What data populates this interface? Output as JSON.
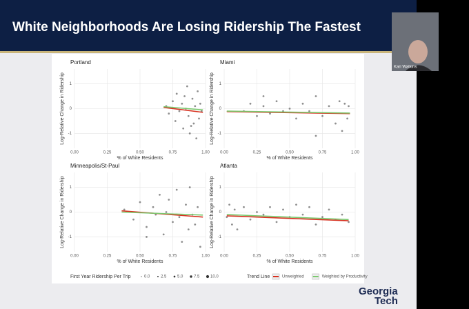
{
  "slide": {
    "title": "White Neighborhoods Are Losing Ridership The Fastest",
    "logo": [
      "Georgia",
      "Tech"
    ]
  },
  "video": {
    "name": "Kari Watkins"
  },
  "legend": {
    "size_title": "First Year Ridership Per Trip",
    "sizes": [
      {
        "value": 0,
        "label": "0.0"
      },
      {
        "value": 2.5,
        "label": "2.5"
      },
      {
        "value": 5,
        "label": "5.0"
      },
      {
        "value": 7.5,
        "label": "7.5"
      },
      {
        "value": 10,
        "label": "10.0"
      }
    ],
    "line_title": "Trend Line",
    "lines": [
      {
        "name": "Unweighted",
        "color": "#d7301f"
      },
      {
        "name": "Weighted by Productivity",
        "color": "#7bc96f"
      }
    ]
  },
  "chart_data": [
    {
      "type": "scatter",
      "title": "Portland",
      "x_label": "% of White Residents",
      "y_label": "Log-Relative Change in Ridership",
      "xlim": [
        0,
        1
      ],
      "ylim": [
        -1.6,
        1.6
      ],
      "xticks": [
        {
          "value": 0,
          "label": "0.00"
        },
        {
          "value": 0.25,
          "label": "0.25"
        },
        {
          "value": 0.5,
          "label": "0.50"
        },
        {
          "value": 0.75,
          "label": "0.75"
        },
        {
          "value": 1,
          "label": "1.00"
        }
      ],
      "yticks": [
        -1,
        0,
        1
      ],
      "grid": true,
      "points": {
        "color": "#444",
        "x": [
          0.7,
          0.72,
          0.75,
          0.77,
          0.78,
          0.8,
          0.82,
          0.83,
          0.85,
          0.86,
          0.87,
          0.88,
          0.9,
          0.91,
          0.92,
          0.93,
          0.94,
          0.95,
          0.96,
          0.97,
          0.89,
          0.84
        ],
        "values": [
          0.1,
          -0.2,
          0.3,
          -0.5,
          0.6,
          -0.1,
          0.2,
          -0.8,
          0,
          0.9,
          -0.3,
          -1,
          0.4,
          -0.6,
          0.1,
          -1.2,
          0.7,
          -0.4,
          0.2,
          -0.1,
          -0.7,
          0.5
        ]
      },
      "lines": [
        {
          "color": "#d7301f",
          "x": [
            0.68,
            0.98
          ],
          "values": [
            0.05,
            -0.15
          ]
        },
        {
          "color": "#7bc96f",
          "x": [
            0.68,
            0.98
          ],
          "values": [
            0.08,
            -0.05
          ]
        }
      ]
    },
    {
      "type": "scatter",
      "title": "Miami",
      "x_label": "% of White Residents",
      "y_label": "Log-Relative Change in Ridership",
      "xlim": [
        0,
        1
      ],
      "ylim": [
        -1.6,
        1.6
      ],
      "xticks": [
        {
          "value": 0,
          "label": "0.00"
        },
        {
          "value": 0.25,
          "label": "0.25"
        },
        {
          "value": 0.5,
          "label": "0.50"
        },
        {
          "value": 0.75,
          "label": "0.75"
        },
        {
          "value": 1,
          "label": "1.00"
        }
      ],
      "yticks": [
        -1,
        0,
        1
      ],
      "grid": true,
      "points": {
        "color": "#444",
        "x": [
          0.15,
          0.2,
          0.25,
          0.3,
          0.35,
          0.4,
          0.45,
          0.5,
          0.55,
          0.6,
          0.65,
          0.7,
          0.75,
          0.8,
          0.85,
          0.88,
          0.9,
          0.92,
          0.94,
          0.95,
          0.7,
          0.3
        ],
        "values": [
          -0.1,
          0.2,
          -0.3,
          0.1,
          -0.2,
          0.3,
          -0.1,
          0,
          -0.4,
          0.2,
          -0.1,
          0.5,
          -0.3,
          0.1,
          -0.6,
          0.3,
          -0.9,
          0.2,
          -0.4,
          0.1,
          -1.1,
          0.5
        ]
      },
      "lines": [
        {
          "color": "#d7301f",
          "x": [
            0.02,
            0.96
          ],
          "values": [
            -0.12,
            -0.2
          ]
        },
        {
          "color": "#7bc96f",
          "x": [
            0.02,
            0.96
          ],
          "values": [
            -0.1,
            -0.18
          ]
        }
      ]
    },
    {
      "type": "scatter",
      "title": "Minneapolis/St-Paul",
      "x_label": "% of White Residents",
      "y_label": "Log-Relative Change in Ridership",
      "xlim": [
        0,
        1
      ],
      "ylim": [
        -1.6,
        1.6
      ],
      "xticks": [
        {
          "value": 0,
          "label": "0.00"
        },
        {
          "value": 0.25,
          "label": "0.25"
        },
        {
          "value": 0.5,
          "label": "0.50"
        },
        {
          "value": 0.75,
          "label": "0.75"
        },
        {
          "value": 1,
          "label": "1.00"
        }
      ],
      "yticks": [
        -1,
        0,
        1
      ],
      "grid": true,
      "points": {
        "color": "#444",
        "x": [
          0.38,
          0.45,
          0.5,
          0.55,
          0.6,
          0.62,
          0.65,
          0.68,
          0.7,
          0.72,
          0.75,
          0.78,
          0.8,
          0.82,
          0.85,
          0.87,
          0.88,
          0.9,
          0.92,
          0.94,
          0.96,
          0.55
        ],
        "values": [
          0.1,
          -0.3,
          0.4,
          -0.6,
          0.2,
          -0.1,
          0.7,
          -0.9,
          0,
          0.5,
          -0.4,
          0.9,
          -0.2,
          -1.2,
          0.3,
          -0.7,
          1,
          -0.1,
          -0.5,
          0.2,
          -1.4,
          -1
        ]
      },
      "lines": [
        {
          "color": "#d7301f",
          "x": [
            0.36,
            0.98
          ],
          "values": [
            0.05,
            -0.2
          ]
        },
        {
          "color": "#7bc96f",
          "x": [
            0.36,
            0.98
          ],
          "values": [
            0,
            -0.12
          ]
        }
      ]
    },
    {
      "type": "scatter",
      "title": "Atlanta",
      "x_label": "% of White Residents",
      "y_label": "Log-Relative Change in Ridership",
      "xlim": [
        0,
        1
      ],
      "ylim": [
        -1.6,
        1.6
      ],
      "xticks": [
        {
          "value": 0,
          "label": "0.00"
        },
        {
          "value": 0.25,
          "label": "0.25"
        },
        {
          "value": 0.5,
          "label": "0.50"
        },
        {
          "value": 0.75,
          "label": "0.75"
        },
        {
          "value": 1,
          "label": "1.00"
        }
      ],
      "yticks": [
        -1,
        0,
        1
      ],
      "grid": true,
      "points": {
        "color": "#444",
        "x": [
          0.02,
          0.04,
          0.06,
          0.08,
          0.1,
          0.15,
          0.2,
          0.25,
          0.3,
          0.35,
          0.4,
          0.45,
          0.5,
          0.55,
          0.6,
          0.65,
          0.7,
          0.75,
          0.8,
          0.85,
          0.9,
          0.95
        ],
        "values": [
          -0.2,
          0.3,
          -0.5,
          0.1,
          -0.7,
          0.2,
          -0.3,
          0,
          -0.1,
          0.2,
          -0.4,
          0.1,
          -0.2,
          0.3,
          -0.1,
          0.2,
          -0.5,
          -0.2,
          0.1,
          -0.3,
          -0.1,
          -0.4
        ]
      },
      "lines": [
        {
          "color": "#d7301f",
          "x": [
            0.02,
            0.95
          ],
          "values": [
            -0.15,
            -0.35
          ]
        },
        {
          "color": "#7bc96f",
          "x": [
            0.02,
            0.95
          ],
          "values": [
            -0.1,
            -0.3
          ]
        }
      ]
    }
  ]
}
